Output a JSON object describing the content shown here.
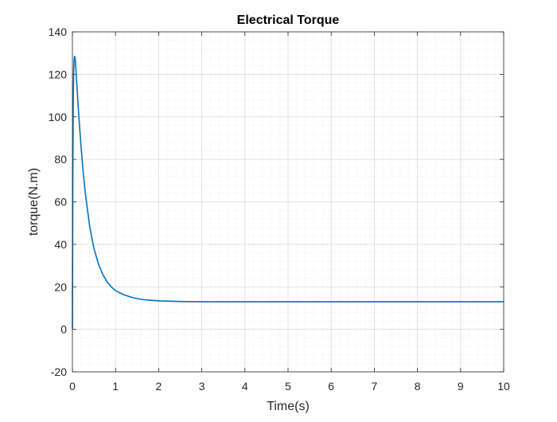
{
  "chart_data": {
    "type": "line",
    "title": "Electrical Torque",
    "xlabel": "Time(s)",
    "ylabel": "torque(N.m)",
    "xlim": [
      0,
      10
    ],
    "ylim": [
      -20,
      140
    ],
    "xticks": [
      0,
      1,
      2,
      3,
      4,
      5,
      6,
      7,
      8,
      9,
      10
    ],
    "yticks": [
      -20,
      0,
      20,
      40,
      60,
      80,
      100,
      120,
      140
    ],
    "grid": true,
    "minor_grid": true,
    "series": [
      {
        "color": "#0072BD",
        "x": [
          0,
          0.01,
          0.02,
          0.03,
          0.04,
          0.05,
          0.06,
          0.07,
          0.08,
          0.1,
          0.15,
          0.2,
          0.25,
          0.3,
          0.4,
          0.5,
          0.6,
          0.7,
          0.8,
          0.9,
          1.0,
          1.2,
          1.4,
          1.6,
          1.8,
          2.0,
          2.5,
          3.0,
          4.0,
          5.0,
          6.0,
          7.0,
          8.0,
          9.0,
          10.0
        ],
        "y": [
          0,
          75,
          108,
          122,
          127,
          128.5,
          128,
          126,
          123,
          116,
          100,
          86,
          74,
          64,
          48.5,
          38,
          31,
          26,
          22.5,
          20,
          18.2,
          16.2,
          14.9,
          14.1,
          13.7,
          13.4,
          13.1,
          13.0,
          13.0,
          13.0,
          13.0,
          13.0,
          13.0,
          13.0,
          13.0
        ]
      }
    ]
  }
}
